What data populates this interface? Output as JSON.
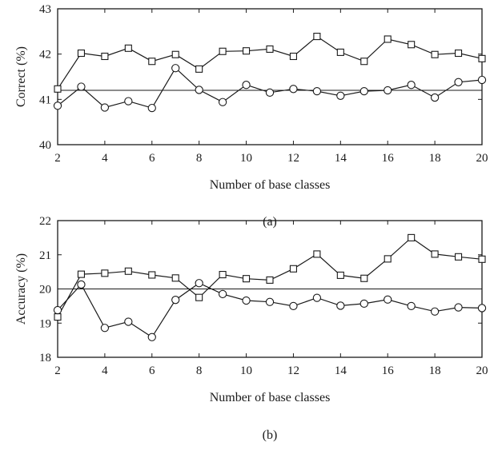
{
  "chart_data": [
    {
      "type": "line",
      "panel_label": "(a)",
      "xlabel": "Number of base classes",
      "ylabel": "Correct (%)",
      "xlim": [
        2,
        20
      ],
      "ylim": [
        40,
        43
      ],
      "xticks": [
        2,
        4,
        6,
        8,
        10,
        12,
        14,
        16,
        18,
        20
      ],
      "yticks": [
        40,
        41,
        42,
        43
      ],
      "grid": false,
      "x": [
        2,
        3,
        4,
        5,
        6,
        7,
        8,
        9,
        10,
        11,
        12,
        13,
        14,
        15,
        16,
        17,
        18,
        19,
        20
      ],
      "series": [
        {
          "marker": "square",
          "values": [
            41.23,
            42.02,
            41.95,
            42.13,
            41.84,
            41.99,
            41.67,
            42.06,
            42.07,
            42.11,
            41.95,
            42.39,
            42.04,
            41.84,
            42.33,
            42.21,
            41.99,
            42.02,
            41.9
          ]
        },
        {
          "marker": "circle",
          "values": [
            40.86,
            41.28,
            40.82,
            40.96,
            40.81,
            41.69,
            41.21,
            40.94,
            41.32,
            41.15,
            41.23,
            41.18,
            41.08,
            41.18,
            41.2,
            41.32,
            41.04,
            41.38,
            41.43
          ]
        }
      ],
      "hline": 41.2
    },
    {
      "type": "line",
      "panel_label": "(b)",
      "xlabel": "Number of base classes",
      "ylabel": "Accuracy (%)",
      "xlim": [
        2,
        20
      ],
      "ylim": [
        18,
        22
      ],
      "xticks": [
        2,
        4,
        6,
        8,
        10,
        12,
        14,
        16,
        18,
        20
      ],
      "yticks": [
        18,
        19,
        20,
        21,
        22
      ],
      "grid": false,
      "x": [
        2,
        3,
        4,
        5,
        6,
        7,
        8,
        9,
        10,
        11,
        12,
        13,
        14,
        15,
        16,
        17,
        18,
        19,
        20
      ],
      "series": [
        {
          "marker": "square",
          "values": [
            19.18,
            20.43,
            20.46,
            20.52,
            20.41,
            20.32,
            19.75,
            20.42,
            20.3,
            20.26,
            20.59,
            21.02,
            20.4,
            20.31,
            20.88,
            21.5,
            21.02,
            20.94,
            20.87
          ]
        },
        {
          "marker": "circle",
          "values": [
            19.38,
            20.13,
            18.86,
            19.04,
            18.59,
            19.68,
            20.17,
            19.85,
            19.66,
            19.62,
            19.5,
            19.74,
            19.51,
            19.57,
            19.69,
            19.5,
            19.34,
            19.46,
            19.44
          ]
        }
      ],
      "hline": 20.0
    }
  ]
}
